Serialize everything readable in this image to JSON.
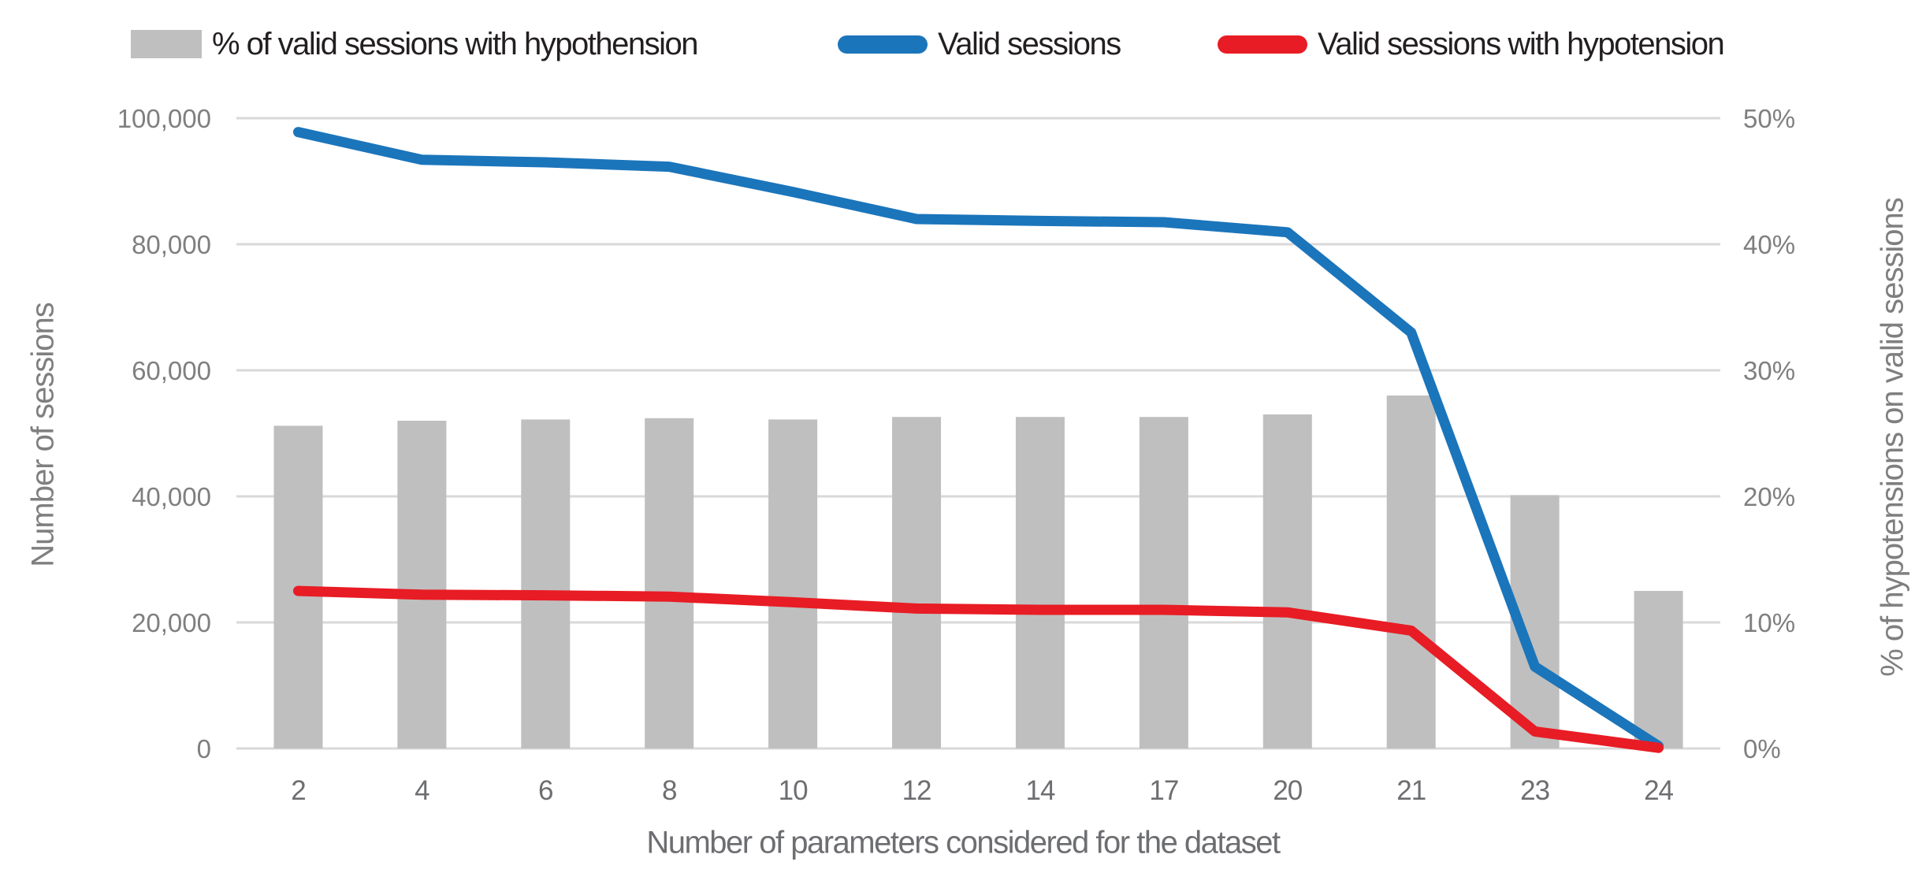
{
  "legend": {
    "items": [
      {
        "label": "% of valid sessions with hypothension",
        "swatch": "bar-swatch",
        "color": "#bfbfbf"
      },
      {
        "label": "Valid sessions",
        "swatch": "line-swatch",
        "color": "#1b75bb"
      },
      {
        "label": "Valid sessions with hypotension",
        "swatch": "line-swatch",
        "color": "#e81c24"
      }
    ]
  },
  "chart_data": {
    "type": "combo-bar-line",
    "title": "",
    "categories": [
      "2",
      "4",
      "6",
      "8",
      "10",
      "12",
      "14",
      "17",
      "20",
      "21",
      "23",
      "24"
    ],
    "x_axis": {
      "label": "Number of parameters considered for the dataset",
      "tick_color": "#6d6e71"
    },
    "left_axis": {
      "label": "Number of sessions",
      "min": 0,
      "max": 100000,
      "step": 20000,
      "tick_labels": [
        "0",
        "20,000",
        "40,000",
        "60,000",
        "80,000",
        "100,000"
      ],
      "tick_color": "#7f7f7f"
    },
    "right_axis": {
      "label": "% of hypotensions on valid sessions",
      "min": 0,
      "max": 50,
      "step": 10,
      "tick_labels": [
        "0%",
        "10%",
        "20%",
        "30%",
        "40%",
        "50%"
      ],
      "tick_color": "#7f7f7f"
    },
    "series": [
      {
        "name": "% of valid sessions with hypothension",
        "type": "bar",
        "axis": "right",
        "color": "#bfbfbf",
        "values": [
          25.6,
          26.0,
          26.1,
          26.2,
          26.1,
          26.3,
          26.3,
          26.3,
          26.5,
          28.0,
          20.1,
          12.5
        ]
      },
      {
        "name": "Valid sessions",
        "type": "line",
        "axis": "left",
        "color": "#1b75bb",
        "values": [
          97800,
          93400,
          93000,
          92300,
          88300,
          84000,
          83700,
          83500,
          81900,
          66000,
          13000,
          400
        ]
      },
      {
        "name": "Valid sessions with hypotension",
        "type": "line",
        "axis": "left",
        "color": "#e81c24",
        "values": [
          25000,
          24400,
          24300,
          24100,
          23200,
          22200,
          22000,
          22000,
          21600,
          18700,
          2700,
          100
        ]
      }
    ],
    "grid": true,
    "gridline_color": "#d9d9d9",
    "legend_position": "top"
  }
}
